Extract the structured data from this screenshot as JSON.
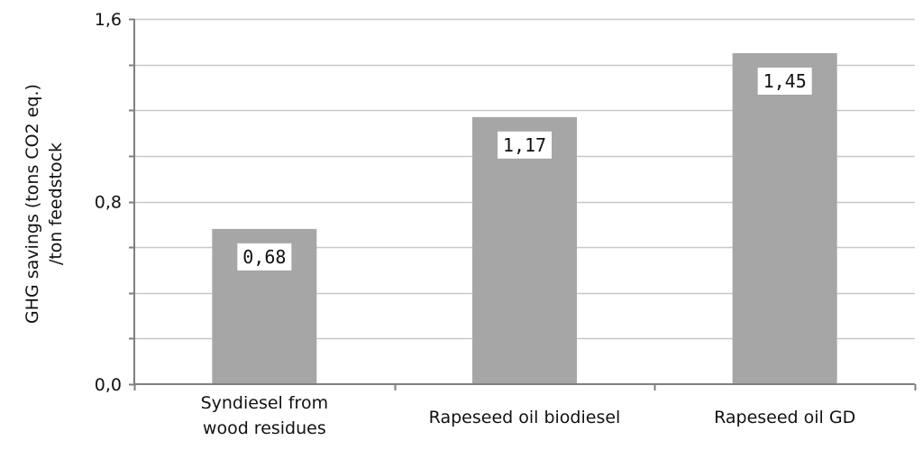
{
  "chart_data": {
    "type": "bar",
    "categories": [
      [
        "Syndiesel from",
        "wood residues"
      ],
      [
        "Rapeseed oil biodiesel"
      ],
      [
        "Rapeseed oil GD"
      ]
    ],
    "values": [
      0.68,
      1.17,
      1.45
    ],
    "data_labels": [
      "0,68",
      "1,17",
      "1,45"
    ],
    "title": "",
    "xlabel": "",
    "ylabel": [
      "GHG savings (tons CO2 eq.)",
      "/ton feedstock"
    ],
    "ylim": [
      0,
      1.6
    ],
    "yticks": [
      {
        "value": 0.0,
        "label": "0,0"
      },
      {
        "value": 0.8,
        "label": "0,8"
      },
      {
        "value": 1.6,
        "label": "1,6"
      }
    ],
    "gridlines": [
      0.2,
      0.4,
      0.6,
      0.8,
      1.0,
      1.2,
      1.4,
      1.6
    ],
    "grid": true,
    "legend": "none",
    "colors": {
      "bar": "#a6a6a6",
      "grid": "#c8c8c8",
      "axis": "#7f7f7f",
      "label_bg": "#ffffff"
    }
  }
}
